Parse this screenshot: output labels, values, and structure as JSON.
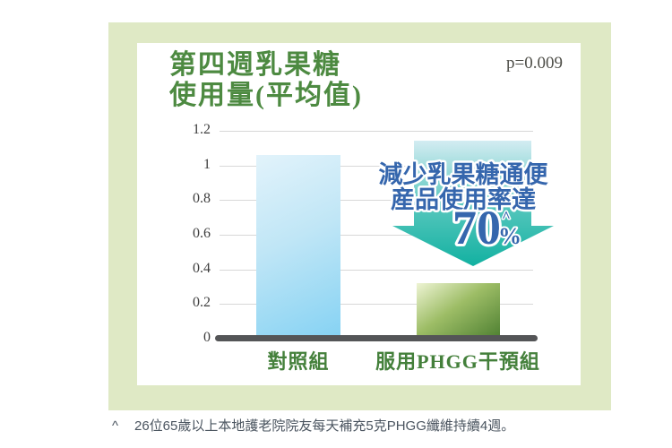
{
  "header": {
    "title_line1": "第四週乳果糖",
    "title_line2": "使用量(平均值)",
    "p_value": "p=0.009"
  },
  "chart_data": {
    "type": "bar",
    "title": "第四週乳果糖使用量(平均值)",
    "categories": [
      "對照組",
      "服用PHGG干預組"
    ],
    "values": [
      1.06,
      0.32
    ],
    "ylim": [
      0,
      1.2
    ],
    "yticks": [
      0,
      0.2,
      0.4,
      0.6,
      0.8,
      1,
      1.2
    ],
    "ytick_labels": [
      "0",
      "0.2",
      "0.4",
      "0.6",
      "0.8",
      "1",
      "1.2"
    ],
    "grid": true,
    "legend": false,
    "p_value": "p=0.009",
    "annotation": {
      "line1": "減少乳果糖通便",
      "line2": "産品使用率達",
      "big_value": "70",
      "percent_sign": "%",
      "footnote_marker": "^"
    }
  },
  "colors": {
    "card_background": "#dfe9c5",
    "panel_background": "#ffffff",
    "title_green": "#4d8a41",
    "category_label_green": "#44803b",
    "p_value_text": "#4e4e48",
    "tick_label_text": "#3d3d3d",
    "gridline": "#d8d8d8",
    "axis_line": "#545557",
    "bar_control_top": "#e2f3fb",
    "bar_control_mid": "#c0e6f6",
    "bar_control_bottom": "#85d2f3",
    "bar_phgg_top": "#eef4d4",
    "bar_phgg_mid": "#9dbd66",
    "bar_phgg_bottom": "#4d7f31",
    "arrow_top": "#d3ecf2",
    "arrow_mid": "#52c5bb",
    "arrow_bottom": "#12b1a1",
    "annotation_text": "#3566ad",
    "annotation_outline": "#ffffff",
    "footnote_text": "#4a545f"
  },
  "footnote": {
    "marker": "^",
    "text": "26位65歲以上本地護老院院友每天補充5克PHGG纖維持續4週。"
  }
}
